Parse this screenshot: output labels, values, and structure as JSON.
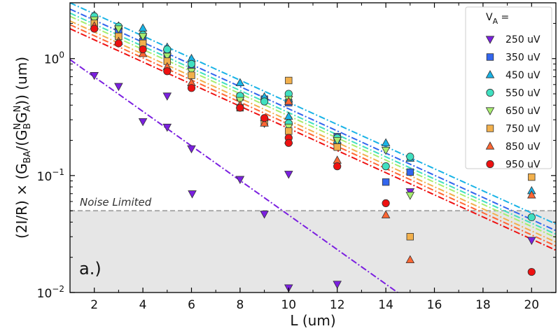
{
  "chart_data": {
    "type": "scatter",
    "xlabel": "L (um)",
    "ylabel": "(2I/R) × (G_BA/(G^N_B G^N_A)) (um)",
    "ylabel_parts": {
      "prefix": "(2I/R) × (G",
      "sub1": "BA",
      "mid1": "/(G",
      "sup1": "N",
      "sub2": "B",
      "mid2": "G",
      "sup2": "N",
      "sub3": "A",
      "suffix": ")) (um)"
    },
    "yscale": "log",
    "xlim": [
      1,
      21
    ],
    "ylim": [
      0.01,
      3.0
    ],
    "x_ticks": [
      2,
      4,
      6,
      8,
      10,
      12,
      14,
      16,
      18,
      20
    ],
    "x_tick_labels": [
      "2",
      "4",
      "6",
      "8",
      "10",
      "12",
      "14",
      "16",
      "18",
      "20"
    ],
    "y_ticks": [
      0.01,
      0.1,
      1.0
    ],
    "y_tick_labels": [
      {
        "base": "10",
        "exp": "−2"
      },
      {
        "base": "10",
        "exp": "−1"
      },
      {
        "base": "10",
        "exp": "0"
      }
    ],
    "panel_label": "a.)",
    "noise_floor": {
      "value": 0.05,
      "label": "Noise Limited",
      "color": "#aaaaaa",
      "fill": "#e6e6e6"
    },
    "legend": {
      "title_main": "V",
      "title_sub": "A",
      "title_suffix": " =",
      "location": "top-right"
    },
    "series": [
      {
        "name": "250 uV",
        "marker": "triangle-down",
        "color": "#7b1fe0",
        "points": [
          [
            2,
            0.72
          ],
          [
            3,
            0.58
          ],
          [
            4,
            0.29
          ],
          [
            5,
            0.48
          ],
          [
            5,
            0.26
          ],
          [
            6,
            0.17
          ],
          [
            6.03,
            0.07
          ],
          [
            8,
            0.093
          ],
          [
            9,
            0.047
          ],
          [
            10,
            0.103
          ],
          [
            10,
            0.011
          ],
          [
            12,
            0.0118
          ],
          [
            15,
            0.073
          ],
          [
            20,
            0.028
          ]
        ],
        "fit": [
          [
            1,
            0.98
          ],
          [
            15.2,
            0.00785
          ]
        ]
      },
      {
        "name": "350 uV",
        "marker": "square",
        "color": "#3366ee",
        "points": [
          [
            2,
            2.05
          ],
          [
            3,
            1.75
          ],
          [
            4,
            1.4
          ],
          [
            5,
            1.1
          ],
          [
            6,
            0.85
          ],
          [
            8,
            0.47
          ],
          [
            9,
            0.45
          ],
          [
            10,
            0.42
          ],
          [
            12,
            0.215
          ],
          [
            14,
            0.088
          ],
          [
            15,
            0.107
          ]
        ],
        "fit": [
          [
            1,
            2.65
          ],
          [
            21,
            0.0338
          ]
        ]
      },
      {
        "name": "450 uV",
        "marker": "triangle-up",
        "color": "#19b3e6",
        "points": [
          [
            2,
            2.35
          ],
          [
            3,
            1.9
          ],
          [
            4,
            1.82
          ],
          [
            5,
            1.25
          ],
          [
            6,
            1.0
          ],
          [
            8,
            0.62
          ],
          [
            9,
            0.47
          ],
          [
            10,
            0.45
          ],
          [
            10,
            0.32
          ],
          [
            12,
            0.2
          ],
          [
            14,
            0.19
          ],
          [
            15,
            0.14
          ],
          [
            20,
            0.074
          ]
        ],
        "fit": [
          [
            1,
            3.0
          ],
          [
            21,
            0.0385
          ]
        ]
      },
      {
        "name": "550 uV",
        "marker": "circle",
        "color": "#40e0c0",
        "points": [
          [
            2,
            2.3
          ],
          [
            3,
            1.88
          ],
          [
            4,
            1.6
          ],
          [
            5,
            1.2
          ],
          [
            6,
            0.9
          ],
          [
            8,
            0.48
          ],
          [
            9,
            0.43
          ],
          [
            10,
            0.5
          ],
          [
            10,
            0.28
          ],
          [
            12,
            0.21
          ],
          [
            14,
            0.12
          ],
          [
            15,
            0.145
          ],
          [
            20,
            0.044
          ]
        ],
        "fit": [
          [
            1,
            2.45
          ],
          [
            21,
            0.0315
          ]
        ]
      },
      {
        "name": "650 uV",
        "marker": "triangle-down",
        "color": "#a8ee70",
        "points": [
          [
            2,
            2.15
          ],
          [
            3,
            1.8
          ],
          [
            4,
            1.55
          ],
          [
            5,
            1.05
          ],
          [
            6,
            0.78
          ],
          [
            8,
            0.44
          ],
          [
            9,
            0.28
          ],
          [
            10,
            0.45
          ],
          [
            10,
            0.26
          ],
          [
            12,
            0.2
          ],
          [
            14,
            0.165
          ],
          [
            15,
            0.068
          ]
        ],
        "fit": [
          [
            1,
            2.3
          ],
          [
            21,
            0.0295
          ]
        ]
      },
      {
        "name": "750 uV",
        "marker": "square",
        "color": "#f2b04c",
        "points": [
          [
            2,
            2.0
          ],
          [
            3,
            1.55
          ],
          [
            4,
            1.35
          ],
          [
            5,
            0.95
          ],
          [
            6,
            0.72
          ],
          [
            8,
            0.38
          ],
          [
            9,
            0.29
          ],
          [
            10,
            0.65
          ],
          [
            10,
            0.24
          ],
          [
            12,
            0.175
          ],
          [
            15,
            0.03
          ],
          [
            20,
            0.097
          ]
        ],
        "fit": [
          [
            1,
            2.1
          ],
          [
            21,
            0.027
          ]
        ]
      },
      {
        "name": "850 uV",
        "marker": "triangle-up",
        "color": "#ff6633",
        "points": [
          [
            2,
            1.9
          ],
          [
            3,
            1.4
          ],
          [
            4,
            1.1
          ],
          [
            5,
            0.85
          ],
          [
            6,
            0.62
          ],
          [
            8,
            0.4
          ],
          [
            9,
            0.28
          ],
          [
            10,
            0.43
          ],
          [
            10,
            0.2
          ],
          [
            12,
            0.135
          ],
          [
            14,
            0.046
          ],
          [
            15,
            0.019
          ],
          [
            20,
            0.068
          ]
        ],
        "fit": [
          [
            1,
            1.95
          ],
          [
            21,
            0.025
          ]
        ]
      },
      {
        "name": "950 uV",
        "marker": "circle",
        "color": "#ee1111",
        "points": [
          [
            2,
            1.8
          ],
          [
            3,
            1.35
          ],
          [
            4,
            1.2
          ],
          [
            5,
            0.78
          ],
          [
            6,
            0.56
          ],
          [
            8,
            0.38
          ],
          [
            9,
            0.31
          ],
          [
            10,
            0.21
          ],
          [
            10,
            0.19
          ],
          [
            12,
            0.12
          ],
          [
            14,
            0.058
          ],
          [
            20,
            0.015
          ]
        ],
        "fit": [
          [
            1,
            1.8
          ],
          [
            21,
            0.023
          ]
        ]
      }
    ]
  }
}
